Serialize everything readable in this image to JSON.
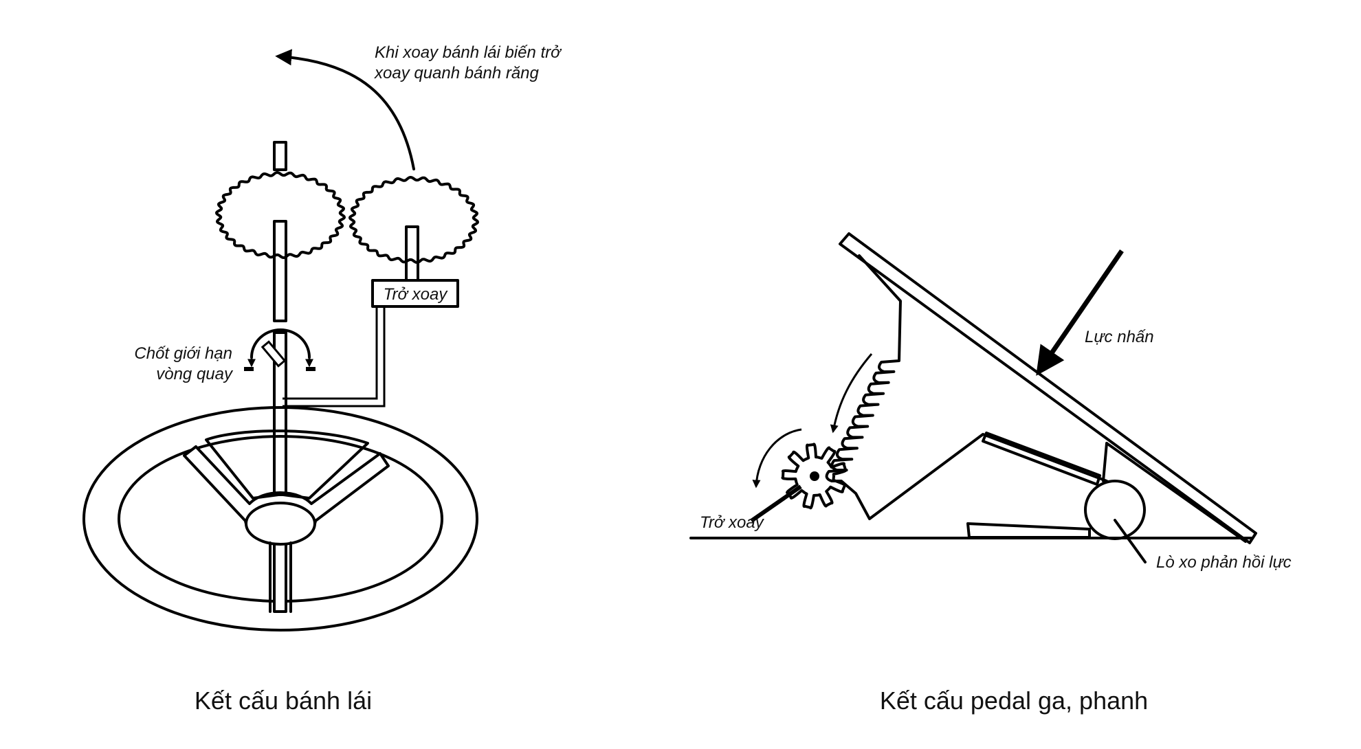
{
  "steering": {
    "annotation_line1": "Khi xoay bánh lái biến trở",
    "annotation_line2": "xoay quanh bánh răng",
    "potentiometer_label": "Trở xoay",
    "limit_pin_line1": "Chốt giới hạn",
    "limit_pin_line2": "vòng quay",
    "caption": "Kết cấu bánh lái"
  },
  "pedal": {
    "force_label": "Lực nhấn",
    "potentiometer_label": "Trở xoay",
    "spring_label": "Lò xo phản hồi lực",
    "caption": "Kết cấu pedal ga, phanh"
  },
  "icons": {
    "steering_wheel": "steering-wheel-icon",
    "gear": "gear-icon",
    "pedal": "pedal-icon",
    "spring": "spring-icon",
    "arrow": "arrow-icon"
  },
  "colors": {
    "stroke": "#000000",
    "background": "#ffffff"
  }
}
